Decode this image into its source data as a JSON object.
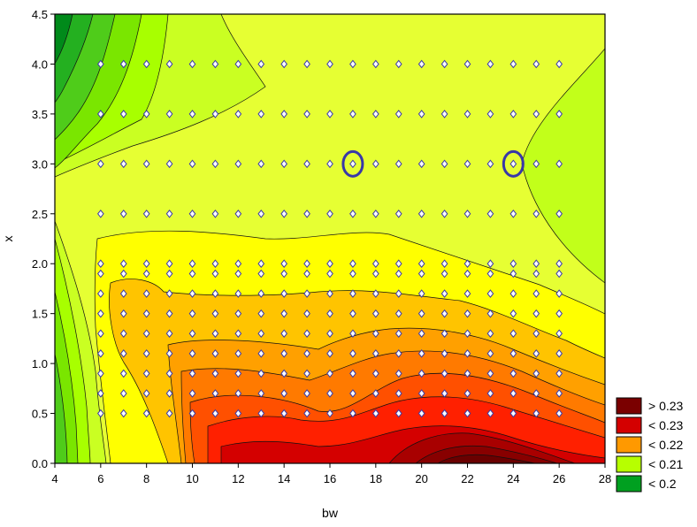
{
  "chart_data": {
    "type": "contour",
    "xlabel": "bw",
    "ylabel": "x",
    "xlim": [
      4,
      28
    ],
    "ylim": [
      0,
      4.5
    ],
    "x_ticks": [
      "4",
      "6",
      "8",
      "10",
      "12",
      "14",
      "16",
      "18",
      "20",
      "22",
      "24",
      "26",
      "28"
    ],
    "y_ticks": [
      "0.0",
      "0.5",
      "1.0",
      "1.5",
      "2.0",
      "2.5",
      "3.0",
      "3.5",
      "4.0",
      "4.5"
    ],
    "legend": {
      "placement": "right-bottom",
      "entries": [
        {
          "label": "> 0.23",
          "color": "#7a0000"
        },
        {
          "label": "< 0.23",
          "color": "#d40000"
        },
        {
          "label": "< 0.22",
          "color": "#ff9900"
        },
        {
          "label": "< 0.21",
          "color": "#b7ff00"
        },
        {
          "label": "< 0.2",
          "color": "#00a020"
        }
      ]
    },
    "sample_points": {
      "upper_rows": {
        "y": [
          2.5,
          3.0,
          3.5,
          4.0
        ],
        "x_from": 6,
        "x_to": 26,
        "step": 1
      },
      "lower_rows": {
        "y": [
          0.5,
          0.7,
          0.9,
          1.1,
          1.3,
          1.5,
          1.7,
          1.9,
          2.0
        ],
        "x_from": 6,
        "x_to": 26,
        "step": 1
      }
    },
    "highlighted_points": [
      {
        "x": 17,
        "y": 3.0
      },
      {
        "x": 24,
        "y": 3.0
      }
    ]
  }
}
